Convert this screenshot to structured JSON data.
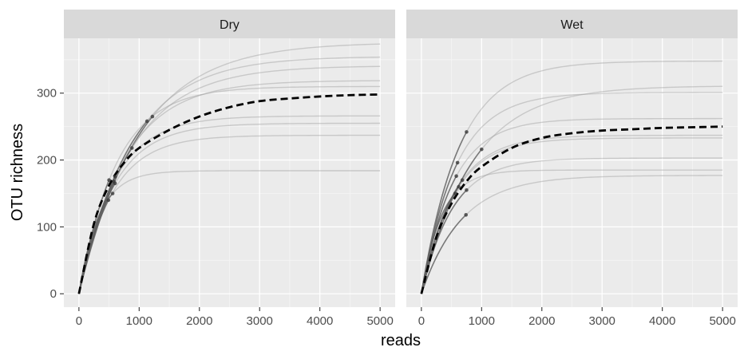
{
  "chart_data": {
    "type": "line",
    "title": "",
    "xlabel": "reads",
    "ylabel": "OTU richness",
    "xlim": [
      -250,
      5250
    ],
    "ylim": [
      -20,
      382
    ],
    "x_ticks": [
      0,
      1000,
      2000,
      3000,
      4000,
      5000
    ],
    "x_tick_labels": [
      "0",
      "1000",
      "2000",
      "3000",
      "4000",
      "5000"
    ],
    "y_ticks": [
      0,
      100,
      200,
      300
    ],
    "y_tick_labels": [
      "0",
      "100",
      "200",
      "300"
    ],
    "grid": true,
    "legend": "none",
    "panels": [
      {
        "label": "Dry",
        "samples": [
          {
            "asymptote": 376,
            "observed_reads": 1220,
            "observed_richness": 265
          },
          {
            "asymptote": 355,
            "observed_reads": 1130,
            "observed_richness": 258
          },
          {
            "asymptote": 341,
            "observed_reads": 880,
            "observed_richness": 218
          },
          {
            "asymptote": 319,
            "observed_reads": 600,
            "observed_richness": 175
          },
          {
            "asymptote": 310,
            "observed_reads": 500,
            "observed_richness": 170
          },
          {
            "asymptote": 266,
            "observed_reads": 580,
            "observed_richness": 168
          },
          {
            "asymptote": 255,
            "observed_reads": 600,
            "observed_richness": 165
          },
          {
            "asymptote": 237,
            "observed_reads": 490,
            "observed_richness": 140
          },
          {
            "asymptote": 184,
            "observed_reads": 560,
            "observed_richness": 150
          }
        ],
        "mean_curve": {
          "x": [
            0,
            250,
            500,
            750,
            1000,
            1500,
            2000,
            2500,
            3000,
            3500,
            4000,
            4500,
            5000
          ],
          "y": [
            0,
            105,
            162,
            196,
            218,
            245,
            265,
            279,
            288,
            292,
            295,
            297,
            298
          ]
        }
      },
      {
        "label": "Wet",
        "samples": [
          {
            "asymptote": 348,
            "observed_reads": 750,
            "observed_richness": 242
          },
          {
            "asymptote": 311,
            "observed_reads": 1000,
            "observed_richness": 216
          },
          {
            "asymptote": 301,
            "observed_reads": 600,
            "observed_richness": 196
          },
          {
            "asymptote": 262,
            "observed_reads": 580,
            "observed_richness": 176
          },
          {
            "asymptote": 237,
            "observed_reads": 680,
            "observed_richness": 170
          },
          {
            "asymptote": 233,
            "observed_reads": 620,
            "observed_richness": 160
          },
          {
            "asymptote": 203,
            "observed_reads": 750,
            "observed_richness": 155
          },
          {
            "asymptote": 185,
            "observed_reads": 560,
            "observed_richness": 150
          },
          {
            "asymptote": 177,
            "observed_reads": 740,
            "observed_richness": 118
          }
        ],
        "mean_curve": {
          "x": [
            0,
            250,
            500,
            750,
            1000,
            1500,
            2000,
            2500,
            3000,
            3500,
            4000,
            4500,
            5000
          ],
          "y": [
            0,
            85,
            135,
            168,
            190,
            218,
            233,
            240,
            244,
            246,
            248,
            249,
            250
          ]
        }
      }
    ]
  },
  "colors": {
    "panel_background": "#ebebeb",
    "strip_background": "#d9d9d9",
    "grid_major": "#ffffff",
    "grid_minor": "#f5f5f5",
    "sample_curve": "#9e9e9e",
    "observed_curve": "#555555",
    "observed_point": "#3a3a3a",
    "mean_curve": "#000000",
    "tick_text": "#4d4d4d"
  }
}
